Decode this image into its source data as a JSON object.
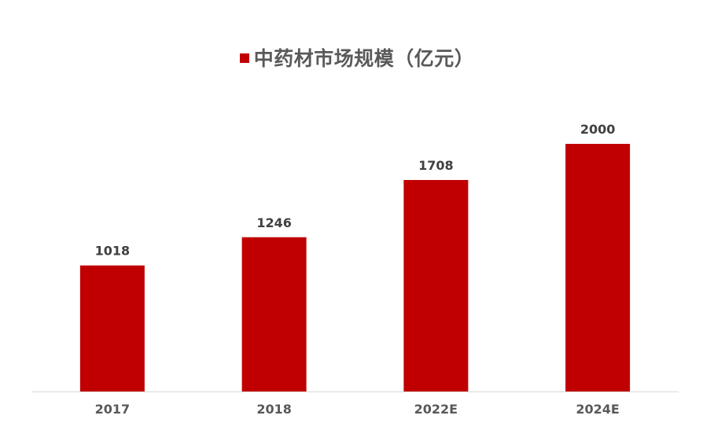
{
  "chart_data": {
    "type": "bar",
    "categories": [
      "2017",
      "2018",
      "2022E",
      "2024E"
    ],
    "series": [
      {
        "name": "中药材市场规模（亿元）",
        "values": [
          1018,
          1246,
          1708,
          2000
        ],
        "color": "#C00000"
      }
    ],
    "title": "",
    "xlabel": "",
    "ylabel": "",
    "ylim": [
      0,
      2000
    ],
    "grid": false,
    "legend_position": "top-center",
    "data_labels": true,
    "axis_color": "#D9D9D9"
  }
}
